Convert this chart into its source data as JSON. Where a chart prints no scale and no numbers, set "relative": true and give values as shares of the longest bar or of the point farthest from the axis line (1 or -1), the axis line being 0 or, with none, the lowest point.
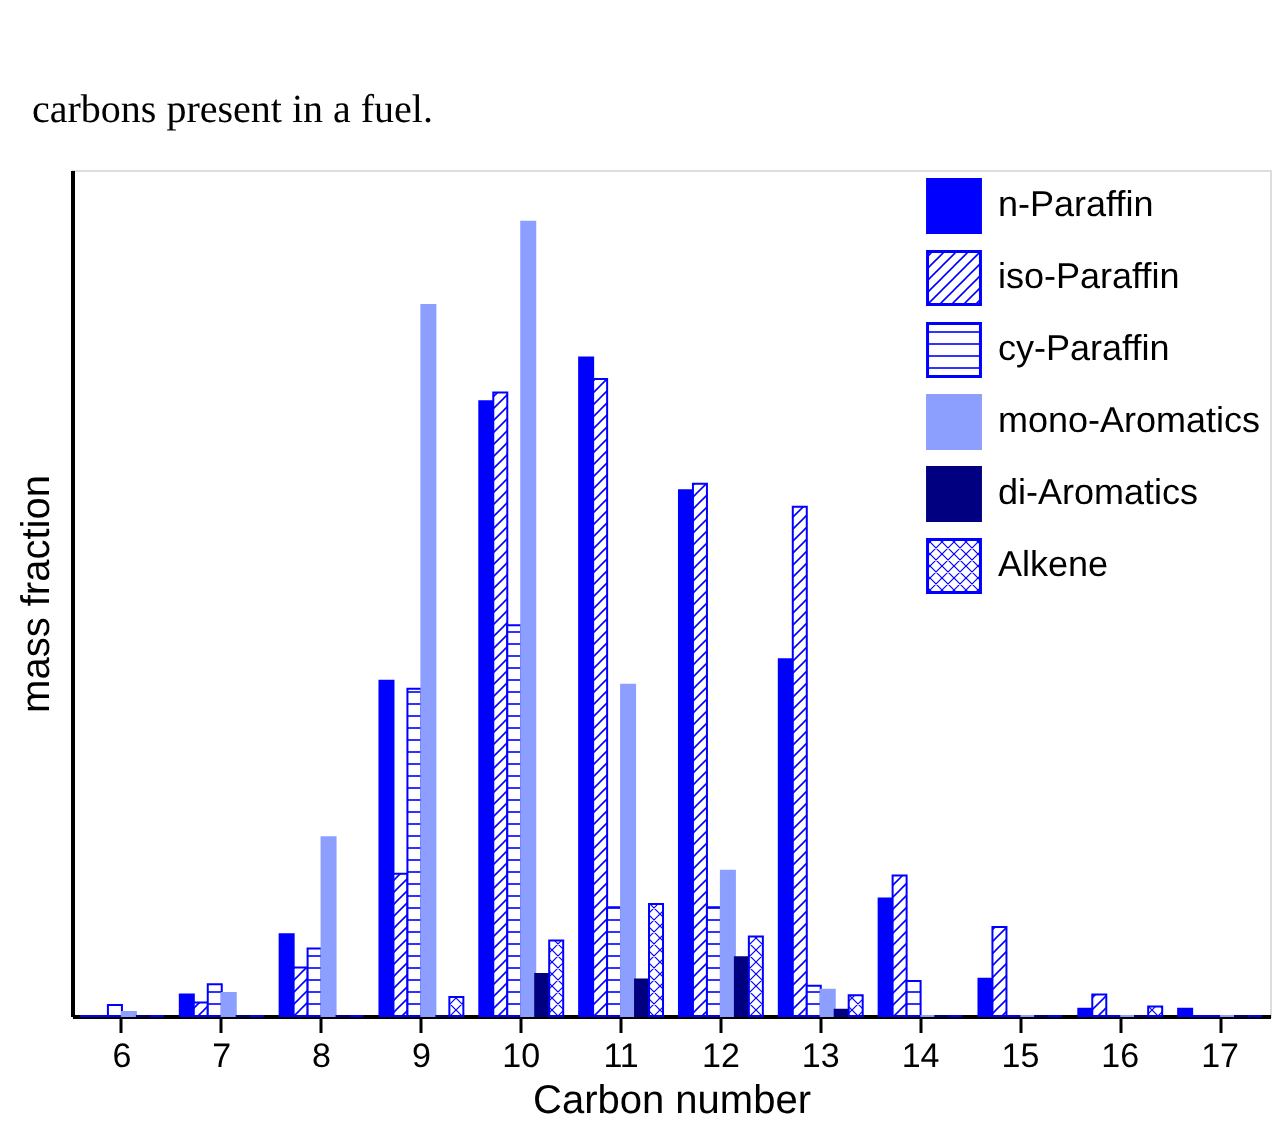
{
  "chart_data": {
    "type": "bar",
    "relative": true,
    "xlabel": "Carbon number",
    "ylabel": "mass fraction",
    "annotations": [
      "carbons present in a fuel."
    ],
    "categories": [
      "6",
      "7",
      "8",
      "9",
      "10",
      "11",
      "12",
      "13",
      "14",
      "15",
      "16",
      "17"
    ],
    "series": [
      {
        "name": "n-Paraffin",
        "color": "#0000ff",
        "values": [
          0,
          0.027,
          0.103,
          0.422,
          0.774,
          0.829,
          0.662,
          0.449,
          0.148,
          0.047,
          0.009,
          0.009
        ]
      },
      {
        "name": "iso-Paraffin",
        "color": "#0000ff",
        "values": [
          0,
          0.017,
          0.061,
          0.179,
          0.785,
          0.802,
          0.67,
          0.641,
          0.177,
          0.112,
          0.027,
          0
        ]
      },
      {
        "name": "cy-Paraffin",
        "color": "#0000ff",
        "values": [
          0.014,
          0.04,
          0.085,
          0.412,
          0.492,
          0.137,
          0.137,
          0.038,
          0.044,
          0,
          0,
          0
        ]
      },
      {
        "name": "mono-Aromatics",
        "color": "#8c9fff",
        "values": [
          0.005,
          0.029,
          0.225,
          0.895,
          1,
          0.417,
          0.183,
          0.033,
          0,
          0,
          0,
          0
        ]
      },
      {
        "name": "di-Aromatics",
        "color": "#000080",
        "values": [
          0,
          0,
          0,
          0,
          0.053,
          0.046,
          0.074,
          0.008,
          0,
          0,
          0,
          0
        ]
      },
      {
        "name": "Alkene",
        "color": "#0000ff",
        "values": [
          0,
          0,
          0,
          0.024,
          0.095,
          0.141,
          0.1,
          0.026,
          0,
          0,
          0.012,
          0
        ]
      }
    ],
    "legend": "top right",
    "grid": false
  }
}
